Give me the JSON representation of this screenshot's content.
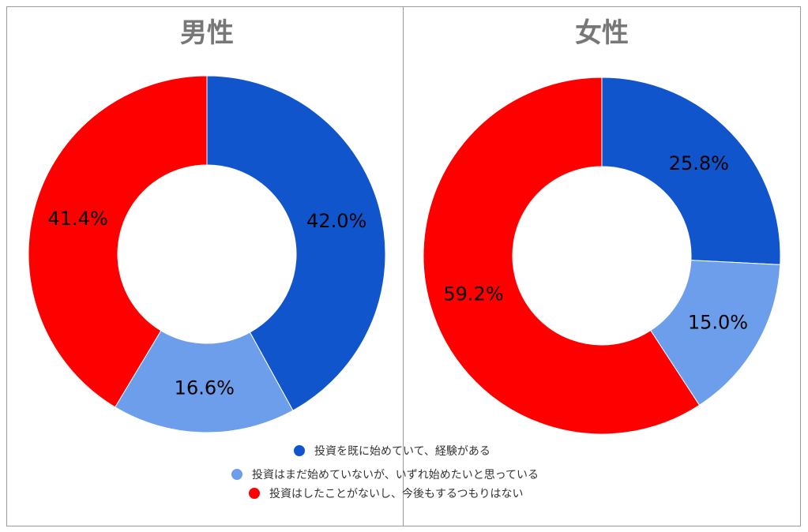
{
  "chart_data": [
    {
      "type": "pie",
      "title": "男性",
      "categories": [
        "投資を既に始めていて、経験がある",
        "投資はまだ始めていないが、いずれ始めたいと思っている",
        "投資はしたことがないし、今後もするつもりはない"
      ],
      "values": [
        42.0,
        16.6,
        41.4
      ],
      "labels": [
        "42.0%",
        "16.6%",
        "41.4%"
      ],
      "colors": [
        "#1155cc",
        "#6d9eeb",
        "#ff0000"
      ]
    },
    {
      "type": "pie",
      "title": "女性",
      "categories": [
        "投資を既に始めていて、経験がある",
        "投資はまだ始めていないが、いずれ始めたいと思っている",
        "投資はしたことがないし、今後もするつもりはない"
      ],
      "values": [
        25.8,
        15.0,
        59.2
      ],
      "labels": [
        "25.8%",
        "15.0%",
        "59.2%"
      ],
      "colors": [
        "#1155cc",
        "#6d9eeb",
        "#ff0000"
      ]
    }
  ],
  "legend": {
    "placement": "bottom",
    "items": [
      {
        "label": "投資を既に始めていて、経験がある",
        "color": "#1155cc"
      },
      {
        "label": "投資はまだ始めていないが、いずれ始めたいと思っている",
        "color": "#6d9eeb"
      },
      {
        "label": "投資はしたことがないし、今後もするつもりはない",
        "color": "#ff0000"
      }
    ]
  }
}
